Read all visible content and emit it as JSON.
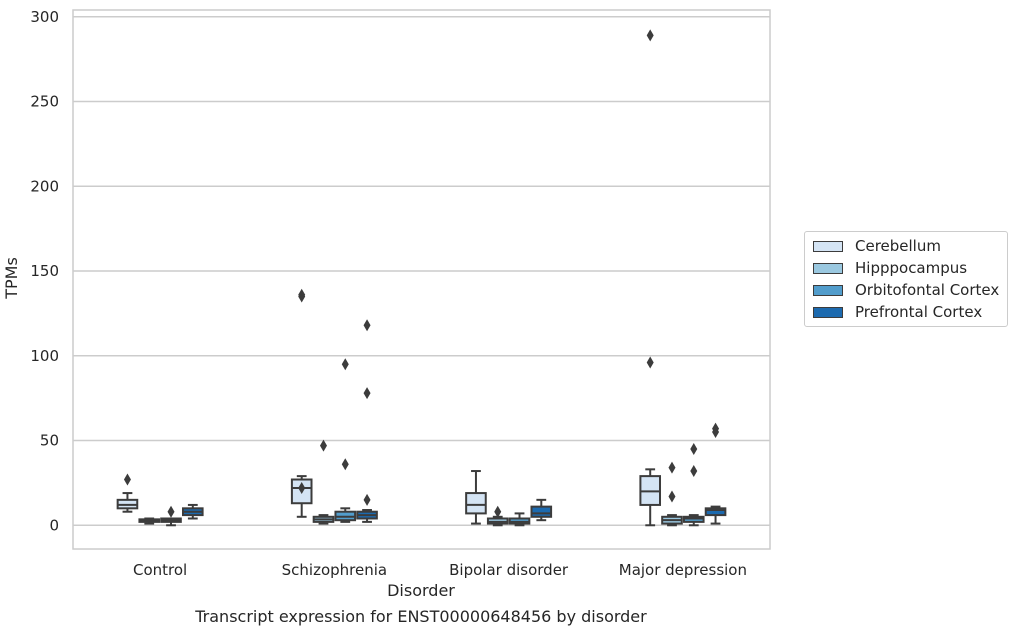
{
  "chart_data": {
    "type": "box",
    "title": "Transcript expression for ENST00000648456 by disorder",
    "xlabel": "Disorder",
    "ylabel": "TPMs",
    "ylim": [
      -14,
      304
    ],
    "yticks": [
      0,
      50,
      100,
      150,
      200,
      250,
      300
    ],
    "categories": [
      "Control",
      "Schizophrenia",
      "Bipolar disorder",
      "Major depression"
    ],
    "grid": "horizontal",
    "legend_position": "right",
    "series": [
      {
        "name": "Cerebellum",
        "color": "#d4e4f4",
        "boxes": [
          {
            "whislo": 8,
            "q1": 10,
            "med": 12,
            "q3": 15,
            "whishi": 19,
            "fliers": [
              27
            ]
          },
          {
            "whislo": 5,
            "q1": 13,
            "med": 22,
            "q3": 27,
            "whishi": 29,
            "fliers": [
              135,
              136,
              22
            ]
          },
          {
            "whislo": 1,
            "q1": 7,
            "med": 12,
            "q3": 19,
            "whishi": 32,
            "fliers": []
          },
          {
            "whislo": 0,
            "q1": 12,
            "med": 20,
            "q3": 29,
            "whishi": 33,
            "fliers": [
              289,
              96
            ]
          }
        ]
      },
      {
        "name": "Hipppocampus",
        "color": "#9ac8e0",
        "boxes": [
          {
            "whislo": 1,
            "q1": 2,
            "med": 3,
            "q3": 3.5,
            "whishi": 4,
            "fliers": []
          },
          {
            "whislo": 1,
            "q1": 2,
            "med": 3.5,
            "q3": 5,
            "whishi": 6,
            "fliers": [
              47
            ]
          },
          {
            "whislo": 0,
            "q1": 1,
            "med": 2,
            "q3": 4,
            "whishi": 5,
            "fliers": [
              8
            ]
          },
          {
            "whislo": 0,
            "q1": 1,
            "med": 3,
            "q3": 5,
            "whishi": 6,
            "fliers": [
              34,
              17
            ]
          }
        ]
      },
      {
        "name": "Orbitofontal Cortex",
        "color": "#529dcc",
        "boxes": [
          {
            "whislo": 0,
            "q1": 2,
            "med": 3,
            "q3": 4,
            "whishi": 4,
            "fliers": [
              8
            ]
          },
          {
            "whislo": 2,
            "q1": 3,
            "med": 5,
            "q3": 8,
            "whishi": 10,
            "fliers": [
              95,
              36
            ]
          },
          {
            "whislo": 0,
            "q1": 1,
            "med": 2,
            "q3": 4,
            "whishi": 7,
            "fliers": []
          },
          {
            "whislo": 0,
            "q1": 2,
            "med": 4,
            "q3": 5,
            "whishi": 6,
            "fliers": [
              45,
              32
            ]
          }
        ]
      },
      {
        "name": "Prefrontal Cortex",
        "color": "#1c6aaf",
        "boxes": [
          {
            "whislo": 4,
            "q1": 6,
            "med": 8,
            "q3": 10,
            "whishi": 12,
            "fliers": []
          },
          {
            "whislo": 2,
            "q1": 4,
            "med": 6,
            "q3": 8,
            "whishi": 9,
            "fliers": [
              118,
              78,
              15
            ]
          },
          {
            "whislo": 3,
            "q1": 5,
            "med": 7,
            "q3": 11,
            "whishi": 15,
            "fliers": []
          },
          {
            "whislo": 1,
            "q1": 6,
            "med": 9,
            "q3": 10,
            "whishi": 11,
            "fliers": [
              55,
              57
            ]
          }
        ]
      }
    ]
  }
}
